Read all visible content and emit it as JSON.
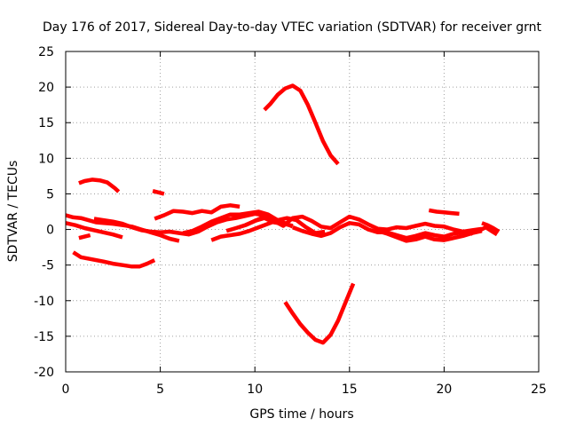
{
  "chart_data": {
    "type": "scatter",
    "title": "Day 176 of 2017, Sidereal Day-to-day VTEC variation (SDTVAR) for receiver grnt",
    "xlabel": "GPS time / hours",
    "ylabel": "SDTVAR / TECUs",
    "xlim": [
      0,
      25
    ],
    "ylim": [
      -20,
      25
    ],
    "xticks": [
      0,
      5,
      10,
      15,
      20,
      25
    ],
    "yticks": [
      -20,
      -15,
      -10,
      -5,
      0,
      5,
      10,
      15,
      20,
      25
    ],
    "grid": true,
    "color": "#ff0000",
    "series": [
      {
        "name": "arc-top-peak",
        "x": [
          10.5,
          10.8,
          11.2,
          11.6,
          12.0,
          12.4,
          12.8,
          13.2,
          13.6,
          14.0,
          14.4
        ],
        "y": [
          16.8,
          17.6,
          18.9,
          19.8,
          20.2,
          19.5,
          17.5,
          15.0,
          12.4,
          10.4,
          9.2
        ]
      },
      {
        "name": "arc-bottom-trough",
        "x": [
          11.6,
          12.0,
          12.4,
          12.8,
          13.2,
          13.6,
          14.0,
          14.4,
          14.8,
          15.2
        ],
        "y": [
          -10.2,
          -11.8,
          -13.3,
          -14.5,
          -15.5,
          -15.9,
          -14.8,
          -12.8,
          -10.2,
          -7.6
        ]
      },
      {
        "name": "arc-upper-left",
        "x": [
          0.7,
          1.0,
          1.4,
          1.8,
          2.2,
          2.6,
          2.8
        ],
        "y": [
          6.5,
          6.8,
          7.0,
          6.9,
          6.6,
          5.8,
          5.3
        ]
      },
      {
        "name": "arc-short-5",
        "x": [
          4.6,
          4.9,
          5.2
        ],
        "y": [
          5.4,
          5.2,
          5.0
        ]
      },
      {
        "name": "arc-lower-left",
        "x": [
          0.4,
          0.8,
          1.2,
          1.6,
          2.0,
          2.5,
          3.0,
          3.5,
          3.9,
          4.3,
          4.7
        ],
        "y": [
          -3.2,
          -3.9,
          -4.1,
          -4.3,
          -4.5,
          -4.8,
          -5.0,
          -5.2,
          -5.2,
          -4.8,
          -4.3
        ]
      },
      {
        "name": "arc-flat-a",
        "x": [
          0.0,
          0.4,
          0.8,
          1.2,
          1.6,
          2.0,
          2.5,
          3.0,
          3.5,
          4.0,
          4.5,
          5.0,
          5.5,
          6.0
        ],
        "y": [
          2.0,
          1.7,
          1.6,
          1.3,
          1.0,
          0.9,
          0.8,
          0.6,
          0.4,
          0.0,
          -0.4,
          -0.8,
          -1.3,
          -1.6
        ]
      },
      {
        "name": "arc-flat-b",
        "x": [
          0.0,
          0.5,
          1.0,
          1.5,
          2.0,
          2.5,
          3.0
        ],
        "y": [
          0.9,
          0.6,
          0.2,
          -0.1,
          -0.4,
          -0.7,
          -1.1
        ]
      },
      {
        "name": "arc-flat-c",
        "x": [
          0.7,
          1.0,
          1.3
        ],
        "y": [
          -1.2,
          -1.0,
          -0.8
        ]
      },
      {
        "name": "arc-flat-d",
        "x": [
          1.5,
          2.0,
          2.5,
          3.0,
          3.5,
          4.0,
          4.5,
          5.0,
          5.5,
          6.0,
          6.5,
          7.0,
          7.5,
          8.0,
          8.5,
          9.0,
          9.5,
          10.0,
          10.5,
          11.0,
          11.5,
          12.0
        ],
        "y": [
          1.5,
          1.3,
          1.1,
          0.8,
          0.3,
          -0.1,
          -0.3,
          -0.4,
          -0.3,
          -0.5,
          -0.7,
          -0.3,
          0.4,
          1.0,
          1.4,
          1.6,
          1.9,
          2.2,
          2.0,
          1.5,
          1.0,
          0.4
        ]
      },
      {
        "name": "arc-rise-e",
        "x": [
          4.7,
          5.2,
          5.7,
          6.2,
          6.7,
          7.2,
          7.7,
          8.2,
          8.7,
          9.2
        ],
        "y": [
          1.5,
          2.0,
          2.6,
          2.5,
          2.3,
          2.6,
          2.4,
          3.2,
          3.4,
          3.2
        ]
      },
      {
        "name": "arc-rise-f",
        "x": [
          6.2,
          6.7,
          7.2,
          7.7,
          8.2,
          8.7,
          9.2,
          9.7,
          10.2,
          10.7,
          11.2
        ],
        "y": [
          -0.5,
          -0.2,
          0.4,
          1.1,
          1.6,
          2.1,
          2.1,
          2.3,
          2.5,
          2.1,
          1.3
        ]
      },
      {
        "name": "arc-rise-g",
        "x": [
          7.7,
          8.2,
          8.7,
          9.2,
          9.7,
          10.2,
          10.7,
          11.2,
          11.7,
          12.2,
          12.7,
          13.2,
          13.7
        ],
        "y": [
          -1.5,
          -1.0,
          -0.8,
          -0.6,
          -0.2,
          0.3,
          0.8,
          1.3,
          1.6,
          1.3,
          0.3,
          -0.5,
          -0.3
        ]
      },
      {
        "name": "arc-rise-h",
        "x": [
          8.5,
          9.0,
          9.5,
          10.0,
          10.5,
          11.0,
          11.5,
          12.0
        ],
        "y": [
          -0.2,
          0.2,
          0.6,
          1.2,
          1.6,
          1.0,
          0.8,
          0.5
        ]
      },
      {
        "name": "arc-mid-i",
        "x": [
          9.5,
          10.0,
          10.5,
          11.0,
          11.5,
          12.0,
          12.5,
          13.0,
          13.5,
          14.0,
          14.5,
          15.0,
          15.5,
          16.0,
          16.5,
          17.0,
          17.5,
          18.0,
          18.5,
          19.0,
          19.5,
          20.0,
          20.5,
          21.0,
          21.5,
          22.0
        ],
        "y": [
          0.6,
          1.2,
          1.8,
          1.2,
          0.5,
          1.6,
          1.8,
          1.2,
          0.4,
          0.2,
          1.0,
          1.8,
          1.4,
          0.7,
          0.1,
          0.0,
          0.3,
          0.2,
          0.5,
          0.8,
          0.5,
          0.4,
          0.0,
          -0.3,
          -0.1,
          0.1
        ]
      },
      {
        "name": "arc-mid-j",
        "x": [
          12.0,
          12.5,
          13.0,
          13.5,
          14.0,
          14.5,
          15.0,
          15.5,
          16.0,
          16.5,
          17.0,
          17.5,
          18.0,
          18.5,
          19.0,
          19.5,
          20.0,
          20.5,
          21.0,
          21.5
        ],
        "y": [
          0.3,
          -0.2,
          -0.6,
          -0.9,
          -0.5,
          0.3,
          0.9,
          0.7,
          0.0,
          -0.4,
          -0.4,
          -0.8,
          -1.2,
          -0.9,
          -0.5,
          -0.8,
          -1.0,
          -0.6,
          -0.4,
          -0.6
        ]
      },
      {
        "name": "arc-mid-k",
        "x": [
          16.5,
          17.0,
          17.5,
          18.0,
          18.5,
          19.0,
          19.5,
          20.0,
          20.5,
          21.0,
          21.5,
          22.0
        ],
        "y": [
          -0.2,
          -0.6,
          -1.1,
          -1.6,
          -1.4,
          -1.0,
          -1.4,
          -1.5,
          -1.2,
          -0.9,
          -0.5,
          -0.2
        ]
      },
      {
        "name": "arc-right-l",
        "x": [
          19.2,
          19.6,
          20.0,
          20.4,
          20.8
        ],
        "y": [
          2.7,
          2.5,
          2.4,
          2.3,
          2.2
        ]
      },
      {
        "name": "arc-right-m",
        "x": [
          22.0,
          22.3,
          22.6,
          22.9
        ],
        "y": [
          0.9,
          0.6,
          0.2,
          -0.3
        ]
      },
      {
        "name": "arc-right-n",
        "x": [
          21.9,
          22.2,
          22.5,
          22.8
        ],
        "y": [
          -0.1,
          0.3,
          -0.2,
          -0.7
        ]
      }
    ]
  }
}
